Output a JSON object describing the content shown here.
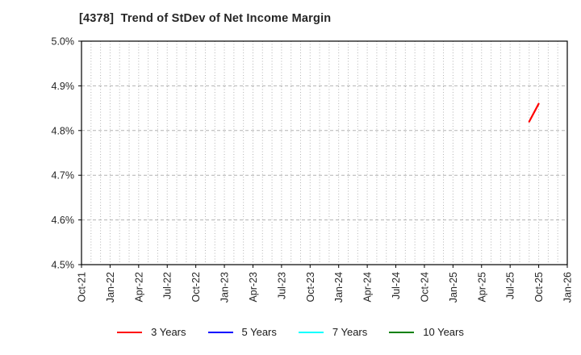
{
  "page": {
    "background": "#ffffff",
    "frame_color": "#000000",
    "grid_color": "#b3b3b3",
    "tick_label_color": "#262626"
  },
  "chart_data": {
    "type": "line",
    "title": "[4378]  Trend of StDev of Net Income Margin",
    "xlabel": "",
    "ylabel": "",
    "x_axis": {
      "tick_labels": [
        "Oct-21",
        "Jan-22",
        "Apr-22",
        "Jul-22",
        "Oct-22",
        "Jan-23",
        "Apr-23",
        "Jul-23",
        "Oct-23",
        "Jan-24",
        "Apr-24",
        "Jul-24",
        "Oct-24",
        "Jan-25",
        "Apr-25",
        "Jul-25",
        "Oct-25",
        "Jan-26"
      ],
      "months_total": 51,
      "months_per_labeled_tick": 3,
      "grid": "monthly-dotted"
    },
    "y_axis": {
      "min": 4.5,
      "max": 5.0,
      "step": 0.1,
      "unit": "%",
      "tick_labels": [
        "4.5%",
        "4.6%",
        "4.7%",
        "4.8%",
        "4.9%",
        "5.0%"
      ],
      "grid": "dashed"
    },
    "series": [
      {
        "name": "3 Years",
        "color": "#ff0000",
        "points": [
          {
            "label": "Sep-25",
            "month_index": 47,
            "value": 4.82
          },
          {
            "label": "Oct-25",
            "month_index": 48,
            "value": 4.86
          }
        ]
      },
      {
        "name": "5 Years",
        "color": "#0000ff",
        "points": []
      },
      {
        "name": "7 Years",
        "color": "#00ffff",
        "points": []
      },
      {
        "name": "10 Years",
        "color": "#008000",
        "points": []
      }
    ],
    "legend": {
      "position": "bottom",
      "labels": [
        "3 Years",
        "5 Years",
        "7 Years",
        "10 Years"
      ]
    }
  }
}
